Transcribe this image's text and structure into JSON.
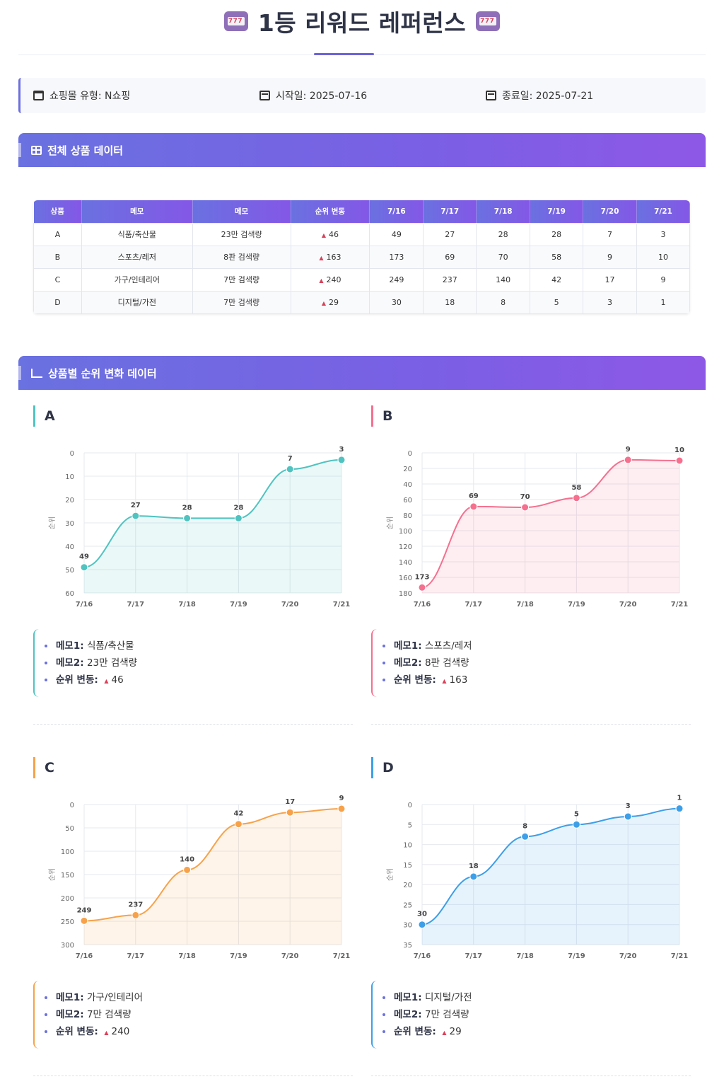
{
  "header": {
    "title": "1등 리워드 레퍼런스"
  },
  "info": {
    "mall_type": "쇼핑몰 유형: N쇼핑",
    "start": "시작일: 2025-07-16",
    "end": "종료일: 2025-07-21"
  },
  "sections": {
    "table_title": "전체 상품 데이터",
    "chart_title": "상품별 순위 변화 데이터"
  },
  "table": {
    "headers": [
      "상품",
      "메모",
      "메모",
      "순위 변동",
      "7/16",
      "7/17",
      "7/18",
      "7/19",
      "7/20",
      "7/21"
    ],
    "rows": [
      {
        "product": "A",
        "memo1": "식품/축산물",
        "memo2": "23만 검색량",
        "change": "46",
        "d1": "49",
        "d2": "27",
        "d3": "28",
        "d4": "28",
        "d5": "7",
        "d6": "3"
      },
      {
        "product": "B",
        "memo1": "스포츠/레저",
        "memo2": "8판 검색량",
        "change": "163",
        "d1": "173",
        "d2": "69",
        "d3": "70",
        "d4": "58",
        "d5": "9",
        "d6": "10"
      },
      {
        "product": "C",
        "memo1": "가구/인테리어",
        "memo2": "7만 검색량",
        "change": "240",
        "d1": "249",
        "d2": "237",
        "d3": "140",
        "d4": "42",
        "d5": "17",
        "d6": "9"
      },
      {
        "product": "D",
        "memo1": "디지털/가전",
        "memo2": "7만 검색량",
        "change": "29",
        "d1": "30",
        "d2": "18",
        "d3": "8",
        "d4": "5",
        "d5": "3",
        "d6": "1"
      }
    ]
  },
  "memo_labels": {
    "memo1": "메모1:",
    "memo2": "메모2:",
    "change": "순위 변동:"
  },
  "chart_data": [
    {
      "type": "area",
      "name": "A",
      "color": "#4fc3c0",
      "categories": [
        "7/16",
        "7/17",
        "7/18",
        "7/19",
        "7/20",
        "7/21"
      ],
      "values": [
        49,
        27,
        28,
        28,
        7,
        3
      ],
      "ylabel": "순위",
      "ylim": [
        0,
        60
      ],
      "yticks": [
        0,
        10,
        20,
        30,
        40,
        50,
        60
      ],
      "y_reversed": true,
      "grid": true,
      "memo1": "식품/축산물",
      "memo2": "23만 검색량",
      "change": "46"
    },
    {
      "type": "area",
      "name": "B",
      "color": "#f5708f",
      "categories": [
        "7/16",
        "7/17",
        "7/18",
        "7/19",
        "7/20",
        "7/21"
      ],
      "values": [
        173,
        69,
        70,
        58,
        9,
        10
      ],
      "ylabel": "순위",
      "ylim": [
        0,
        180
      ],
      "yticks": [
        0,
        20,
        40,
        60,
        80,
        100,
        120,
        140,
        160,
        180
      ],
      "y_reversed": true,
      "grid": true,
      "memo1": "스포츠/레저",
      "memo2": "8판 검색량",
      "change": "163"
    },
    {
      "type": "area",
      "name": "C",
      "color": "#f7a24a",
      "categories": [
        "7/16",
        "7/17",
        "7/18",
        "7/19",
        "7/20",
        "7/21"
      ],
      "values": [
        249,
        237,
        140,
        42,
        17,
        9
      ],
      "ylabel": "순위",
      "ylim": [
        0,
        300
      ],
      "yticks": [
        0,
        50,
        100,
        150,
        200,
        250,
        300
      ],
      "y_reversed": true,
      "grid": true,
      "memo1": "가구/인테리어",
      "memo2": "7만 검색량",
      "change": "240"
    },
    {
      "type": "area",
      "name": "D",
      "color": "#3d9fe8",
      "categories": [
        "7/16",
        "7/17",
        "7/18",
        "7/19",
        "7/20",
        "7/21"
      ],
      "values": [
        30,
        18,
        8,
        5,
        3,
        1
      ],
      "ylabel": "순위",
      "ylim": [
        0,
        35
      ],
      "yticks": [
        0,
        5,
        10,
        15,
        20,
        25,
        30,
        35
      ],
      "y_reversed": true,
      "grid": true,
      "memo1": "디지털/가전",
      "memo2": "7만 검색량",
      "change": "29"
    }
  ]
}
